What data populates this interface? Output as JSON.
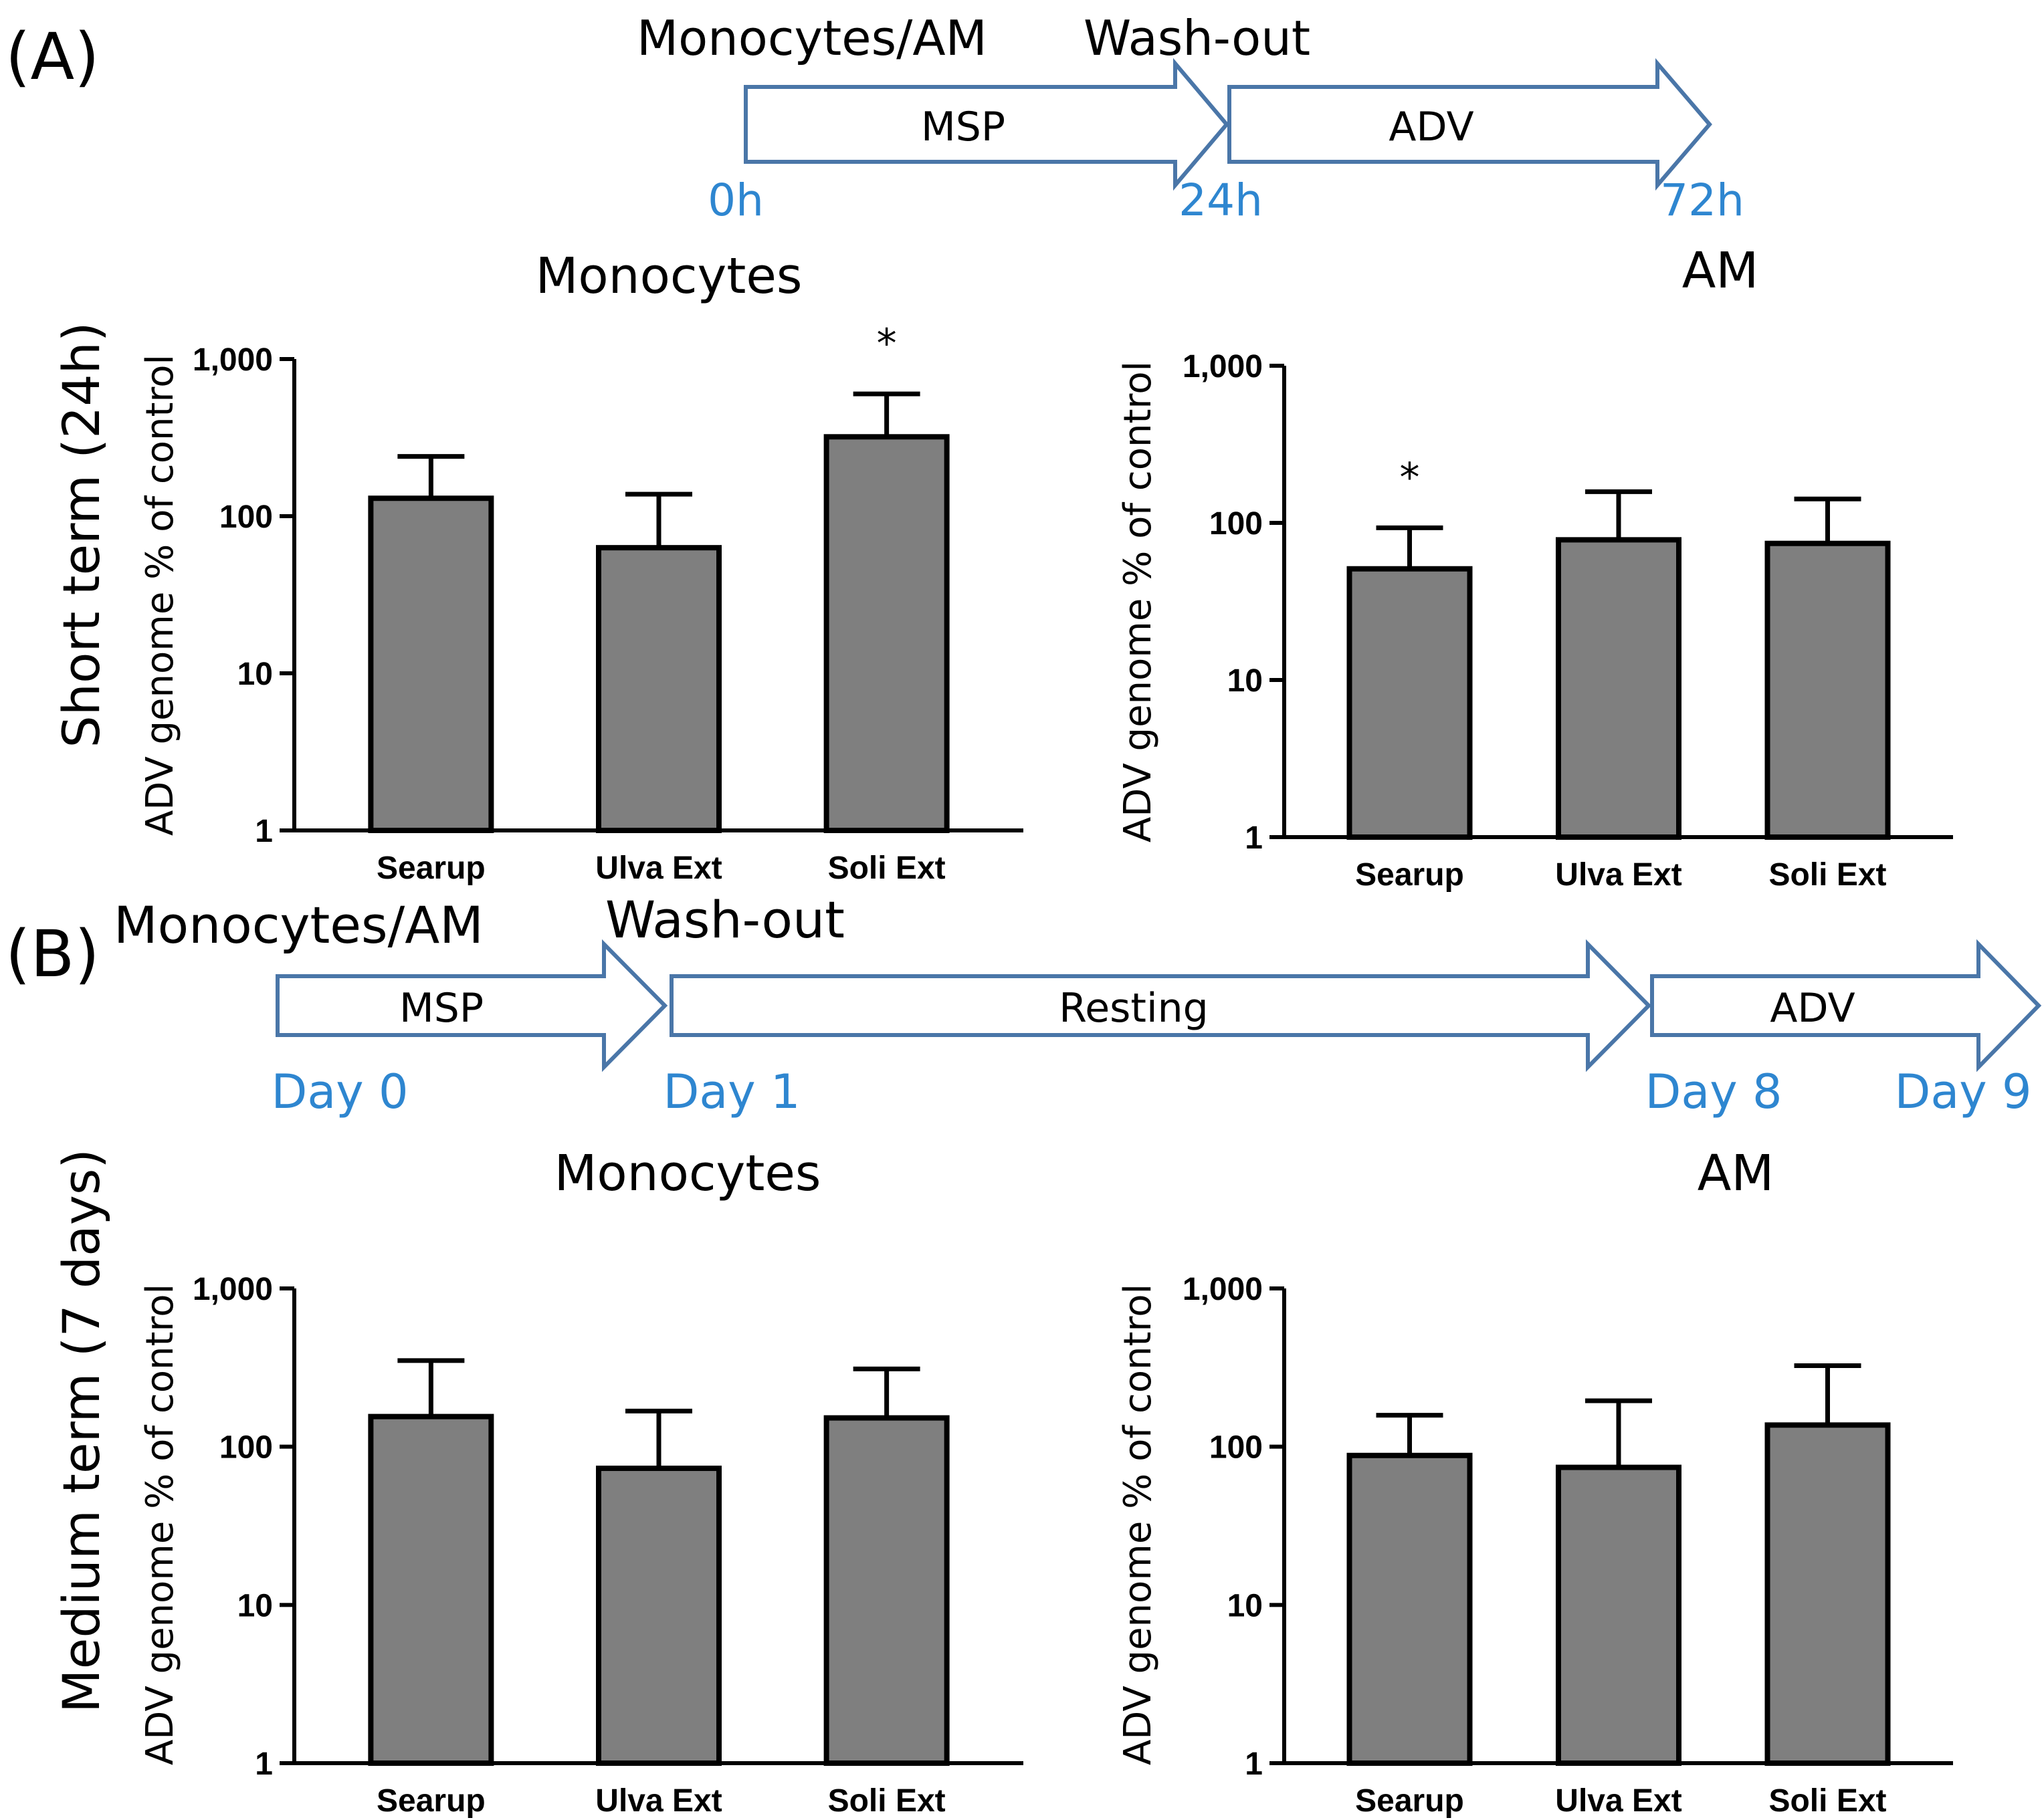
{
  "colors": {
    "arrow_stroke": "#4a76a8",
    "time_label": "#2e86d0",
    "bar_fill": "#7f7f7f",
    "ink": "#000000"
  },
  "panel_a": {
    "label": "(A)",
    "timeline": {
      "start_label": "Monocytes/AM",
      "washout_label": "Wash-out",
      "arrows": [
        "MSP",
        "ADV"
      ],
      "times": [
        "0h",
        "24h",
        "72h"
      ]
    },
    "row_label": "Short term (24h)"
  },
  "panel_b": {
    "label": "(B)",
    "timeline": {
      "start_label": "Monocytes/AM",
      "washout_label": "Wash-out",
      "arrows": [
        "MSP",
        "Resting",
        "ADV"
      ],
      "times": [
        "Day 0",
        "Day 1",
        "Day 8",
        "Day 9"
      ]
    },
    "row_label": "Medium term (7 days)"
  },
  "chart_data": [
    {
      "type": "bar",
      "panel": "A",
      "title": "Monocytes",
      "ylabel": "ADV genome % of control",
      "yscale": "log",
      "ylim": [
        1,
        1000
      ],
      "yticks": [
        "1",
        "10",
        "100",
        "1,000"
      ],
      "categories": [
        "Searup",
        "Ulva Ext",
        "Soli Ext"
      ],
      "values": [
        130,
        63,
        320
      ],
      "error_upper": [
        240,
        138,
        600
      ],
      "significance": [
        "",
        "",
        "*"
      ]
    },
    {
      "type": "bar",
      "panel": "A",
      "title": "AM",
      "ylabel": "ADV genome % of control",
      "yscale": "log",
      "ylim": [
        1,
        1000
      ],
      "yticks": [
        "1",
        "10",
        "100",
        "1,000"
      ],
      "categories": [
        "Searup",
        "Ulva Ext",
        "Soli Ext"
      ],
      "values": [
        51,
        78,
        74
      ],
      "error_upper": [
        93,
        158,
        142
      ],
      "significance": [
        "*",
        "",
        ""
      ]
    },
    {
      "type": "bar",
      "panel": "B",
      "title": "Monocytes",
      "ylabel": "ADV genome % of control",
      "yscale": "log",
      "ylim": [
        1,
        1000
      ],
      "yticks": [
        "1",
        "10",
        "100",
        "1,000"
      ],
      "categories": [
        "Searup",
        "Ulva Ext",
        "Soli Ext"
      ],
      "values": [
        155,
        73,
        152
      ],
      "error_upper": [
        350,
        168,
        310
      ],
      "significance": [
        "",
        "",
        ""
      ]
    },
    {
      "type": "bar",
      "panel": "B",
      "title": "AM",
      "ylabel": "ADV genome % of control",
      "yscale": "log",
      "ylim": [
        1,
        1000
      ],
      "yticks": [
        "1",
        "10",
        "100",
        "1,000"
      ],
      "categories": [
        "Searup",
        "Ulva Ext",
        "Soli Ext"
      ],
      "values": [
        88,
        74,
        137
      ],
      "error_upper": [
        158,
        195,
        325
      ],
      "significance": [
        "",
        "",
        ""
      ]
    }
  ]
}
